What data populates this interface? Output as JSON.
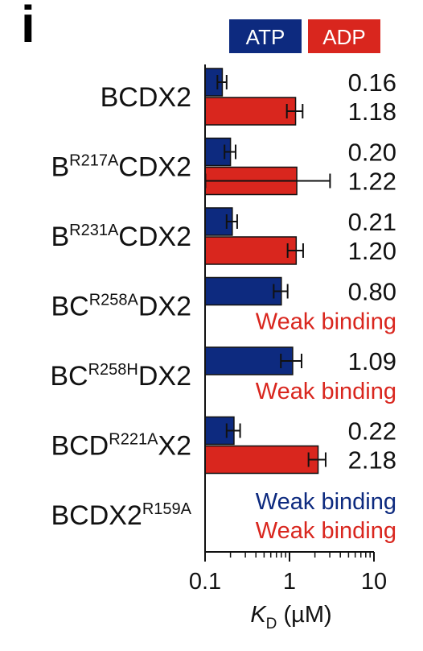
{
  "panel_label": "i",
  "colors": {
    "ATP": "#0d2a7f",
    "ADP": "#d9261e"
  },
  "chart_data": {
    "type": "bar",
    "orientation": "horizontal",
    "x_scale": "log",
    "xlim": [
      0.1,
      10
    ],
    "xticks": [
      "0.1",
      "1",
      "10"
    ],
    "xlabel": {
      "italic": "K",
      "sub": "D",
      "rest": " (µM)"
    },
    "legend": [
      "ATP",
      "ADP"
    ],
    "legend_position": "top",
    "grid": false,
    "categories": [
      {
        "base": "BCDX2",
        "sup": "",
        "tail": ""
      },
      {
        "base": "B",
        "sup": "R217A",
        "tail": "CDX2"
      },
      {
        "base": "B",
        "sup": "R231A",
        "tail": "CDX2"
      },
      {
        "base": "BC",
        "sup": "R258A",
        "tail": "DX2"
      },
      {
        "base": "BC",
        "sup": "R258H",
        "tail": "DX2"
      },
      {
        "base": "BCD",
        "sup": "R221A",
        "tail": "X2"
      },
      {
        "base": "BCDX2",
        "sup": "R159A",
        "tail": ""
      }
    ],
    "series": [
      {
        "name": "ATP",
        "values": [
          0.16,
          0.2,
          0.21,
          0.8,
          1.09,
          0.22,
          null
        ],
        "errors": [
          0.02,
          0.03,
          0.03,
          0.15,
          0.3,
          0.04,
          null
        ],
        "labels": [
          "0.16",
          "0.20",
          "0.21",
          "0.80",
          "1.09",
          "0.22",
          "Weak binding"
        ]
      },
      {
        "name": "ADP",
        "values": [
          1.18,
          1.22,
          1.2,
          null,
          null,
          2.18,
          null
        ],
        "errors": [
          0.25,
          1.8,
          0.25,
          null,
          null,
          0.5,
          null
        ],
        "labels": [
          "1.18",
          "1.22",
          "1.20",
          "Weak binding",
          "Weak binding",
          "2.18",
          "Weak binding"
        ]
      }
    ]
  }
}
